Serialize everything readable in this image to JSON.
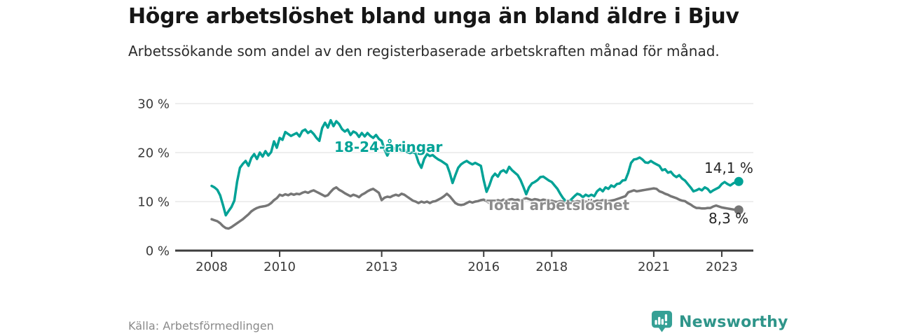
{
  "header": {
    "title": "Högre arbetslöshet bland unga än bland äldre i Bjuv",
    "subtitle": "Arbetssökande som andel av den registerbaserade arbetskraften månad för månad."
  },
  "footer": {
    "source": "Källa: Arbetsförmedlingen",
    "logo_text": "Newsworthy"
  },
  "colors": {
    "young_line": "#00a296",
    "total_line": "#767676",
    "total_label": "#8c8c8c",
    "grid": "#dcdcdc",
    "axis": "#3d3d3d",
    "tick_text": "#3a3a3a",
    "logo_teal": "#35a095",
    "logo_text_color": "#2f958a"
  },
  "chart_data": {
    "type": "line",
    "title": "Högre arbetslöshet bland unga än bland äldre i Bjuv",
    "subtitle": "Arbetssökande som andel av den registerbaserade arbetskraften månad för månad.",
    "unit": "%",
    "x_start_year": 2008,
    "frequency": "monthly",
    "x_ticks": [
      2008,
      2010,
      2013,
      2016,
      2018,
      2021,
      2023
    ],
    "x_tick_labels": [
      "2008",
      "2010",
      "2013",
      "2016",
      "2018",
      "2021",
      "2023"
    ],
    "y_tick_values": [
      0,
      10,
      20,
      30
    ],
    "y_tick_labels": [
      "0 %",
      "10 %",
      "20 %",
      "30 %"
    ],
    "ylim": [
      0,
      30
    ],
    "grid": true,
    "legend_position": "inline-labels",
    "series": [
      {
        "name": "18-24-åringar",
        "end_label": "14,1 %",
        "end_value": 14.1,
        "color": "#00a296",
        "values": [
          13.2,
          12.9,
          12.4,
          11.3,
          9.3,
          7.2,
          8.1,
          8.9,
          10.2,
          14.1,
          16.9,
          17.7,
          18.3,
          17.3,
          18.9,
          19.7,
          18.7,
          20.0,
          19.2,
          20.3,
          19.4,
          20.1,
          22.3,
          21.0,
          23.0,
          22.6,
          24.2,
          23.8,
          23.4,
          23.7,
          24.0,
          23.3,
          24.4,
          24.7,
          24.0,
          24.4,
          23.8,
          23.0,
          22.4,
          25.0,
          26.1,
          25.1,
          26.6,
          25.4,
          26.4,
          25.8,
          24.8,
          24.3,
          24.7,
          23.6,
          24.3,
          24.0,
          23.2,
          24.0,
          23.3,
          24.0,
          23.4,
          23.0,
          23.6,
          22.8,
          22.4,
          20.6,
          19.4,
          20.6,
          21.0,
          20.6,
          20.9,
          20.4,
          20.7,
          20.1,
          19.9,
          20.1,
          19.8,
          18.0,
          16.9,
          18.7,
          19.7,
          19.3,
          19.5,
          19.0,
          18.6,
          18.3,
          17.9,
          17.5,
          15.9,
          13.8,
          15.4,
          16.9,
          17.6,
          18.0,
          18.3,
          17.9,
          17.6,
          17.9,
          17.6,
          17.3,
          14.4,
          12.0,
          13.3,
          15.0,
          15.7,
          15.1,
          16.1,
          16.4,
          15.9,
          17.1,
          16.4,
          15.9,
          15.4,
          14.4,
          13.0,
          11.5,
          12.9,
          13.7,
          14.0,
          14.4,
          15.0,
          15.1,
          14.7,
          14.3,
          14.0,
          13.3,
          12.6,
          11.6,
          10.7,
          10.1,
          10.0,
          10.5,
          11.1,
          11.6,
          11.4,
          10.9,
          11.4,
          11.1,
          11.4,
          11.1,
          12.1,
          12.6,
          12.1,
          12.9,
          12.6,
          13.3,
          13.0,
          13.6,
          13.7,
          14.3,
          14.4,
          15.9,
          17.9,
          18.6,
          18.7,
          19.0,
          18.6,
          18.0,
          17.9,
          18.3,
          17.9,
          17.6,
          17.3,
          16.4,
          16.6,
          15.9,
          16.1,
          15.4,
          15.0,
          15.4,
          14.7,
          14.3,
          13.6,
          12.9,
          12.1,
          12.3,
          12.6,
          12.3,
          12.9,
          12.6,
          11.9,
          12.3,
          12.6,
          12.9,
          13.6,
          14.0,
          13.6,
          13.3,
          13.7,
          14.0,
          14.1
        ]
      },
      {
        "name": "Total arbetslöshet",
        "end_label": "8,3 %",
        "end_value": 8.3,
        "color": "#767676",
        "values": [
          6.4,
          6.2,
          6.0,
          5.6,
          5.0,
          4.6,
          4.5,
          4.8,
          5.2,
          5.6,
          6.0,
          6.4,
          6.9,
          7.4,
          8.0,
          8.4,
          8.7,
          8.9,
          9.0,
          9.1,
          9.3,
          9.7,
          10.3,
          10.7,
          11.4,
          11.2,
          11.5,
          11.3,
          11.6,
          11.4,
          11.6,
          11.5,
          11.8,
          12.0,
          11.8,
          12.1,
          12.3,
          12.0,
          11.7,
          11.4,
          11.1,
          11.3,
          12.0,
          12.6,
          12.9,
          12.4,
          12.1,
          11.7,
          11.4,
          11.1,
          11.4,
          11.2,
          10.9,
          11.4,
          11.7,
          12.1,
          12.4,
          12.6,
          12.2,
          11.8,
          10.3,
          10.8,
          11.0,
          10.9,
          11.2,
          11.4,
          11.2,
          11.6,
          11.4,
          11.0,
          10.6,
          10.2,
          10.0,
          9.7,
          10.0,
          9.8,
          10.0,
          9.7,
          10.0,
          10.1,
          10.4,
          10.7,
          11.1,
          11.6,
          11.1,
          10.4,
          9.7,
          9.4,
          9.3,
          9.4,
          9.7,
          10.0,
          9.8,
          10.0,
          10.1,
          10.3,
          10.4,
          10.1,
          9.7,
          9.9,
          10.1,
          10.3,
          10.1,
          10.4,
          10.2,
          10.4,
          10.5,
          10.3,
          10.4,
          10.2,
          10.5,
          10.7,
          10.5,
          10.3,
          10.5,
          10.4,
          10.2,
          10.4,
          10.3,
          10.1,
          10.2,
          10.0,
          9.9,
          10.1,
          10.0,
          9.8,
          10.0,
          10.1,
          9.9,
          10.1,
          10.0,
          9.9,
          10.0,
          9.9,
          10.1,
          10.0,
          10.2,
          10.1,
          10.3,
          10.2,
          10.1,
          10.2,
          10.3,
          10.5,
          10.7,
          10.9,
          11.1,
          11.9,
          12.1,
          12.3,
          12.1,
          12.2,
          12.3,
          12.4,
          12.5,
          12.6,
          12.7,
          12.6,
          12.1,
          11.9,
          11.6,
          11.4,
          11.1,
          10.9,
          10.7,
          10.4,
          10.2,
          10.1,
          9.7,
          9.4,
          9.0,
          8.7,
          8.7,
          8.6,
          8.6,
          8.7,
          8.7,
          9.0,
          9.2,
          9.0,
          8.8,
          8.7,
          8.6,
          8.5,
          8.4,
          8.3,
          8.3
        ]
      }
    ]
  }
}
